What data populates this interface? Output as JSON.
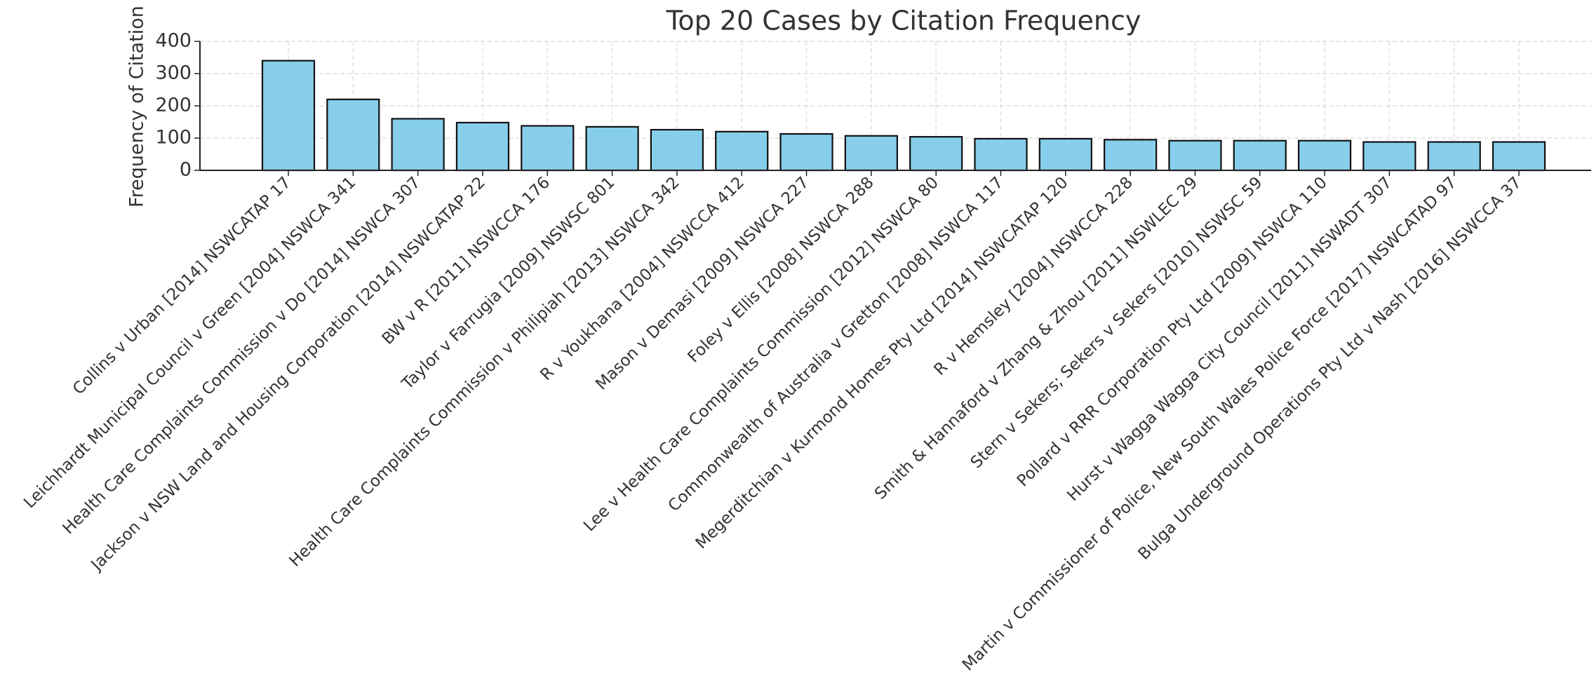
{
  "chart_data": {
    "type": "bar",
    "title": "Top 20 Cases by Citation Frequency",
    "y_label": "Frequency of Citation",
    "categories": [
      "Collins v Urban [2014] NSWCATAP 17",
      "Leichhardt Municipal Council v Green [2004] NSWCA 341",
      "Health Care Complaints Commission v Do [2014] NSWCA 307",
      "Jackson v NSW Land and Housing Corporation [2014] NSWCATAP 22",
      "BW v R [2011] NSWCCA 176",
      "Taylor v Farrugia [2009] NSWSC 801",
      "Health Care Complaints Commission v Philipiah [2013] NSWCA 342",
      "R v Youkhana [2004] NSWCCA 412",
      "Mason v Demasi [2009] NSWCA 227",
      "Foley v Ellis [2008] NSWCA 288",
      "Lee v Health Care Complaints Commission [2012] NSWCA 80",
      "Commonwealth of Australia v Gretton [2008] NSWCA 117",
      "Megerditchian v Kurmond Homes Pty Ltd [2014] NSWCATAP 120",
      "R v Hemsley [2004] NSWCCA 228",
      "Smith & Hannaford v Zhang & Zhou [2011] NSWLEC 29",
      "Stern v Sekers; Sekers v Sekers [2010] NSWSC 59",
      "Pollard v RRR Corporation Pty Ltd [2009] NSWCA 110",
      "Hurst v Wagga Wagga City Council [2011] NSWADT 307",
      "Martin v Commissioner of Police, New South Wales Police Force [2017] NSWCATAD 97",
      "Bulga Underground Operations Pty Ltd v Nash [2016] NSWCCA 37"
    ],
    "values": [
      340,
      220,
      160,
      148,
      138,
      135,
      126,
      120,
      113,
      107,
      104,
      98,
      98,
      95,
      92,
      92,
      92,
      88,
      88,
      88
    ],
    "color": "#87ceeb",
    "ylim": [
      0,
      400
    ],
    "yticks": [
      0,
      100,
      200,
      300,
      400
    ],
    "grid": true
  }
}
